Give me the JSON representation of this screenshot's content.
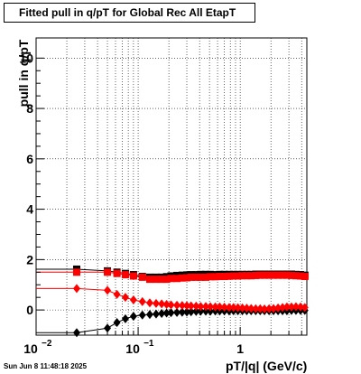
{
  "chart_data": {
    "type": "scatter",
    "title": "Fitted pull in q/pT for Global Rec All EtapT",
    "xlabel": "pT/|q| (GeV/c)",
    "ylabel": "pull in q/pT",
    "x_scale": "log",
    "xlim": [
      0.01,
      4.5
    ],
    "ylim": [
      -1,
      10.8
    ],
    "grid": true,
    "x_ticks": [
      {
        "value": 0.01,
        "base": "10",
        "exp": "−2"
      },
      {
        "value": 0.1,
        "base": "10",
        "exp": "−1"
      },
      {
        "value": 1,
        "base": "1",
        "exp": ""
      }
    ],
    "y_ticks": [
      0,
      2,
      4,
      6,
      8,
      10
    ],
    "y_tick_labels": [
      "0",
      "2",
      "4",
      "6",
      "8",
      "10"
    ],
    "series": [
      {
        "marker": "square",
        "color": "#000000",
        "x": [
          0.025,
          0.05,
          0.062,
          0.075,
          0.09,
          0.11,
          0.13,
          0.15,
          0.17,
          0.19,
          0.21,
          0.24,
          0.27,
          0.3,
          0.33,
          0.37,
          0.41,
          0.46,
          0.51,
          0.57,
          0.63,
          0.7,
          0.78,
          0.86,
          0.95,
          1.05,
          1.16,
          1.28,
          1.42,
          1.57,
          1.73,
          1.92,
          2.12,
          2.35,
          2.6,
          2.87,
          3.18,
          3.52,
          3.9,
          4.3
        ],
        "y": [
          1.62,
          1.55,
          1.5,
          1.45,
          1.4,
          1.33,
          1.3,
          1.3,
          1.3,
          1.32,
          1.35,
          1.37,
          1.38,
          1.39,
          1.4,
          1.4,
          1.41,
          1.41,
          1.41,
          1.4,
          1.41,
          1.41,
          1.41,
          1.41,
          1.41,
          1.41,
          1.41,
          1.41,
          1.42,
          1.42,
          1.42,
          1.42,
          1.42,
          1.42,
          1.42,
          1.42,
          1.42,
          1.41,
          1.4,
          1.38
        ]
      },
      {
        "marker": "diamond",
        "color": "#000000",
        "x": [
          0.025,
          0.05,
          0.062,
          0.075,
          0.09,
          0.11,
          0.13,
          0.15,
          0.17,
          0.19,
          0.21,
          0.24,
          0.27,
          0.3,
          0.33,
          0.37,
          0.41,
          0.46,
          0.51,
          0.57,
          0.63,
          0.7,
          0.78,
          0.86,
          0.95,
          1.05,
          1.16,
          1.28,
          1.42,
          1.57,
          1.73,
          1.92,
          2.12,
          2.35,
          2.6,
          2.87,
          3.18,
          3.52,
          3.9,
          4.3
        ],
        "y": [
          -0.9,
          -0.72,
          -0.5,
          -0.35,
          -0.25,
          -0.2,
          -0.18,
          -0.16,
          -0.14,
          -0.12,
          -0.11,
          -0.1,
          -0.09,
          -0.08,
          -0.07,
          -0.06,
          -0.05,
          -0.05,
          -0.05,
          -0.04,
          -0.04,
          -0.04,
          -0.04,
          -0.03,
          -0.03,
          -0.03,
          -0.03,
          -0.03,
          -0.03,
          -0.03,
          -0.03,
          -0.03,
          -0.03,
          -0.03,
          -0.03,
          -0.03,
          -0.02,
          -0.02,
          -0.02,
          -0.02
        ]
      },
      {
        "marker": "square",
        "color": "#ff0000",
        "x": [
          0.025,
          0.05,
          0.062,
          0.075,
          0.09,
          0.11,
          0.13,
          0.15,
          0.17,
          0.19,
          0.21,
          0.24,
          0.27,
          0.3,
          0.33,
          0.37,
          0.41,
          0.46,
          0.51,
          0.57,
          0.63,
          0.7,
          0.78,
          0.86,
          0.95,
          1.05,
          1.16,
          1.28,
          1.42,
          1.57,
          1.73,
          1.92,
          2.12,
          2.35,
          2.6,
          2.87,
          3.18,
          3.52,
          3.9,
          4.3
        ],
        "y": [
          1.5,
          1.5,
          1.45,
          1.4,
          1.35,
          1.3,
          1.22,
          1.22,
          1.22,
          1.22,
          1.25,
          1.25,
          1.27,
          1.28,
          1.3,
          1.3,
          1.3,
          1.3,
          1.32,
          1.32,
          1.33,
          1.33,
          1.34,
          1.35,
          1.35,
          1.36,
          1.36,
          1.36,
          1.37,
          1.38,
          1.38,
          1.38,
          1.38,
          1.38,
          1.38,
          1.38,
          1.37,
          1.36,
          1.35,
          1.33
        ]
      },
      {
        "marker": "diamond",
        "color": "#ff0000",
        "x": [
          0.025,
          0.05,
          0.062,
          0.075,
          0.09,
          0.11,
          0.13,
          0.15,
          0.17,
          0.19,
          0.21,
          0.24,
          0.27,
          0.3,
          0.33,
          0.37,
          0.41,
          0.46,
          0.51,
          0.57,
          0.63,
          0.7,
          0.78,
          0.86,
          0.95,
          1.05,
          1.16,
          1.28,
          1.42,
          1.57,
          1.73,
          1.92,
          2.12,
          2.35,
          2.6,
          2.87,
          3.18,
          3.52,
          3.9,
          4.3
        ],
        "y": [
          0.85,
          0.78,
          0.62,
          0.5,
          0.4,
          0.33,
          0.28,
          0.26,
          0.24,
          0.22,
          0.2,
          0.19,
          0.18,
          0.17,
          0.16,
          0.15,
          0.14,
          0.14,
          0.13,
          0.12,
          0.12,
          0.11,
          0.1,
          0.1,
          0.09,
          0.08,
          0.07,
          0.06,
          0.05,
          0.05,
          0.04,
          0.05,
          0.06,
          0.08,
          0.1,
          0.12,
          0.12,
          0.13,
          0.12,
          0.1
        ]
      }
    ]
  },
  "timestamp": "Sun Jun  8 11:48:18 2025"
}
